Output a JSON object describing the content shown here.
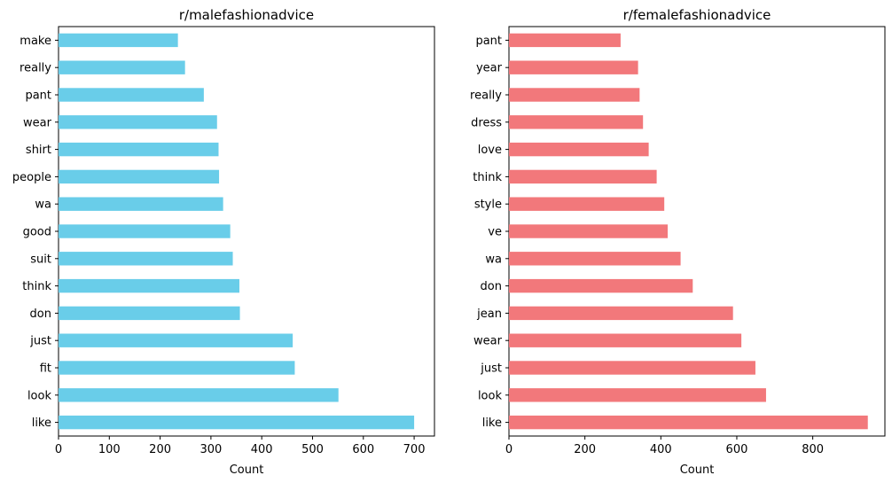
{
  "chart_data": [
    {
      "type": "bar",
      "orientation": "horizontal",
      "title": "r/malefashionadvice",
      "xlabel": "Count",
      "ylabel": "",
      "categories": [
        "make",
        "really",
        "pant",
        "wear",
        "shirt",
        "people",
        "wa",
        "good",
        "suit",
        "think",
        "don",
        "just",
        "fit",
        "look",
        "like"
      ],
      "values": [
        235,
        249,
        286,
        312,
        315,
        316,
        324,
        338,
        343,
        356,
        357,
        461,
        465,
        551,
        700
      ],
      "xlim": [
        0,
        740
      ],
      "xticks": [
        0,
        100,
        200,
        300,
        400,
        500,
        600,
        700
      ],
      "color": "#69cde9",
      "grid": false
    },
    {
      "type": "bar",
      "orientation": "horizontal",
      "title": "r/femalefashionadvice",
      "xlabel": "Count",
      "ylabel": "",
      "categories": [
        "pant",
        "year",
        "really",
        "dress",
        "love",
        "think",
        "style",
        "ve",
        "wa",
        "don",
        "jean",
        "wear",
        "just",
        "look",
        "like"
      ],
      "values": [
        294,
        340,
        344,
        353,
        368,
        389,
        409,
        418,
        452,
        484,
        590,
        612,
        649,
        677,
        945
      ],
      "xlim": [
        0,
        990
      ],
      "xticks": [
        0,
        200,
        400,
        600,
        800
      ],
      "color": "#f2787b",
      "grid": false
    }
  ]
}
